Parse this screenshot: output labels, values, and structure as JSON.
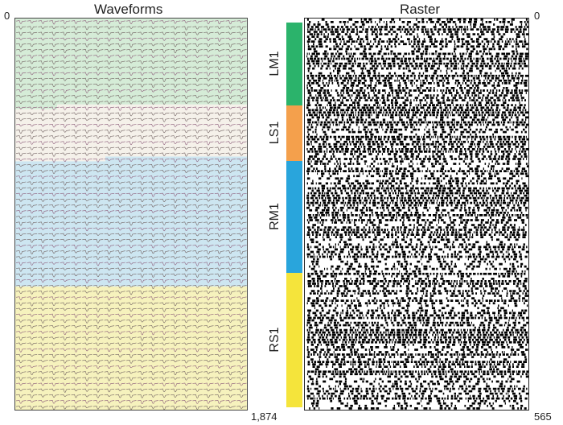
{
  "waveforms": {
    "title": "Waveforms",
    "y_start_label": "0",
    "y_end_label": "1,874"
  },
  "raster": {
    "title": "Raster",
    "y_start_label": "0",
    "y_end_label": "565"
  },
  "regions": [
    {
      "name": "LM1",
      "color": "#2bb36b",
      "wave_bg": "#d5ecd7",
      "share": 0.215
    },
    {
      "name": "LS1",
      "color": "#f4a04c",
      "wave_bg": "#f5f1ea",
      "share": 0.145
    },
    {
      "name": "RM1",
      "color": "#29a5dc",
      "wave_bg": "#cde6f1",
      "share": 0.29
    },
    {
      "name": "RS1",
      "color": "#f5e43b",
      "wave_bg": "#f6f2bd",
      "share": 0.35
    }
  ],
  "colors": {
    "wave_line": "#6f5f5f",
    "wave_line_alt": "#8a5a78",
    "raster_spike": "#000000"
  }
}
